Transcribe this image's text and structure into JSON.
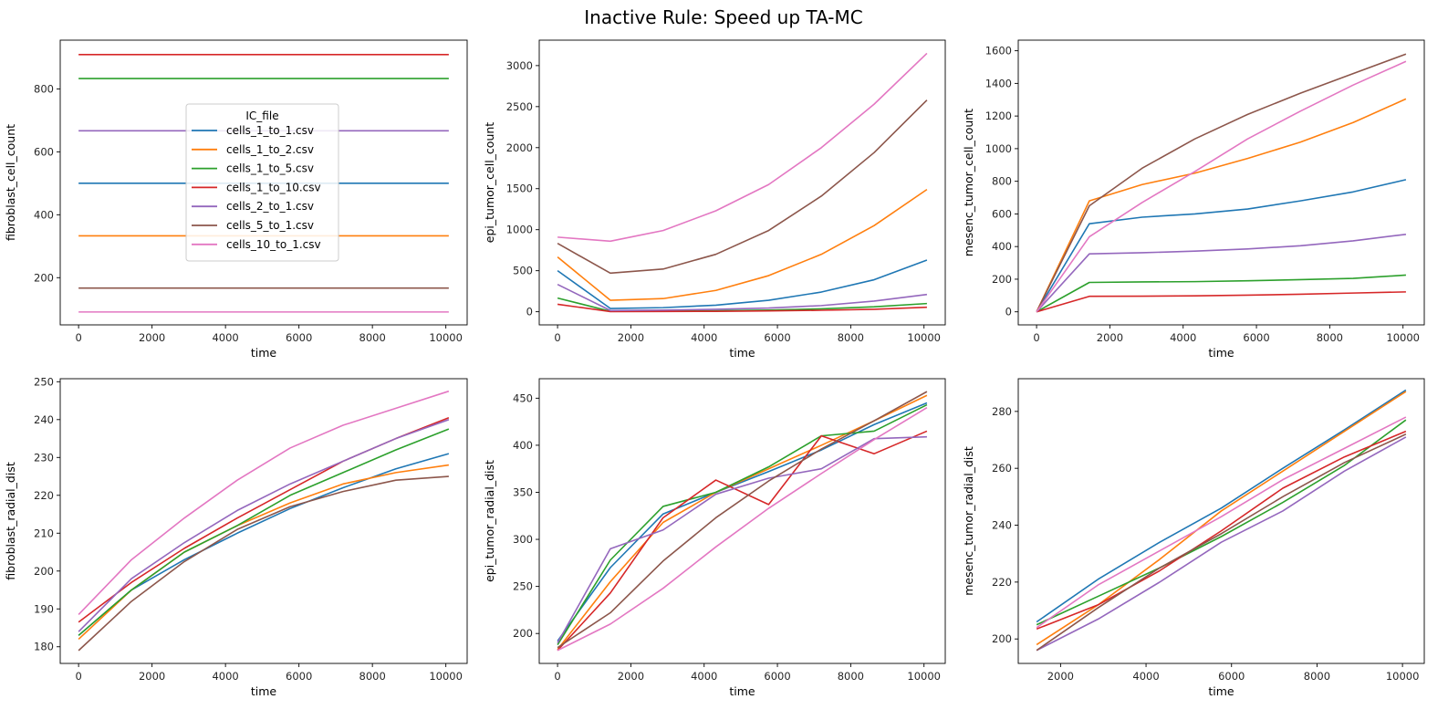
{
  "figure": {
    "title": "Inactive Rule: Speed up TA-MC",
    "legend_title": "IC_file"
  },
  "colors": {
    "cells_1_to_1.csv": "#1f77b4",
    "cells_1_to_2.csv": "#ff7f0e",
    "cells_1_to_5.csv": "#2ca02c",
    "cells_1_to_10.csv": "#d62728",
    "cells_2_to_1.csv": "#9467bd",
    "cells_5_to_1.csv": "#8c564b",
    "cells_10_to_1.csv": "#e377c2"
  },
  "chart_data": [
    {
      "type": "line",
      "xlabel": "time",
      "ylabel": "fibroblast_cell_count",
      "xlim": [
        -500,
        10580
      ],
      "ylim": [
        50,
        955
      ],
      "xticks": [
        0,
        2000,
        4000,
        6000,
        8000,
        10000
      ],
      "yticks": [
        200,
        400,
        600,
        800
      ],
      "legend": "upper-center",
      "series": [
        {
          "name": "cells_1_to_1.csv",
          "x": [
            0,
            10080
          ],
          "y": [
            500,
            500
          ]
        },
        {
          "name": "cells_1_to_2.csv",
          "x": [
            0,
            10080
          ],
          "y": [
            333,
            333
          ]
        },
        {
          "name": "cells_1_to_5.csv",
          "x": [
            0,
            10080
          ],
          "y": [
            833,
            833
          ]
        },
        {
          "name": "cells_1_to_10.csv",
          "x": [
            0,
            10080
          ],
          "y": [
            909,
            909
          ]
        },
        {
          "name": "cells_2_to_1.csv",
          "x": [
            0,
            10080
          ],
          "y": [
            667,
            667
          ]
        },
        {
          "name": "cells_5_to_1.csv",
          "x": [
            0,
            10080
          ],
          "y": [
            167,
            167
          ]
        },
        {
          "name": "cells_10_to_1.csv",
          "x": [
            0,
            10080
          ],
          "y": [
            91,
            91
          ]
        }
      ]
    },
    {
      "type": "line",
      "xlabel": "time",
      "ylabel": "epi_tumor_cell_count",
      "xlim": [
        -500,
        10580
      ],
      "ylim": [
        -160,
        3310
      ],
      "xticks": [
        0,
        2000,
        4000,
        6000,
        8000,
        10000
      ],
      "yticks": [
        0,
        500,
        1000,
        1500,
        2000,
        2500,
        3000
      ],
      "series": [
        {
          "name": "cells_1_to_1.csv",
          "x": [
            0,
            1440,
            2880,
            4320,
            5760,
            7200,
            8640,
            10080
          ],
          "y": [
            500,
            40,
            50,
            80,
            140,
            240,
            390,
            630
          ]
        },
        {
          "name": "cells_1_to_2.csv",
          "x": [
            0,
            1440,
            2880,
            4320,
            5760,
            7200,
            8640,
            10080
          ],
          "y": [
            667,
            140,
            160,
            260,
            440,
            700,
            1050,
            1490
          ]
        },
        {
          "name": "cells_1_to_5.csv",
          "x": [
            0,
            1440,
            2880,
            4320,
            5760,
            7200,
            8640,
            10080
          ],
          "y": [
            167,
            5,
            8,
            12,
            20,
            35,
            60,
            100
          ]
        },
        {
          "name": "cells_1_to_10.csv",
          "x": [
            0,
            1440,
            2880,
            4320,
            5760,
            7200,
            8640,
            10080
          ],
          "y": [
            91,
            2,
            3,
            5,
            10,
            18,
            30,
            55
          ]
        },
        {
          "name": "cells_2_to_1.csv",
          "x": [
            0,
            1440,
            2880,
            4320,
            5760,
            7200,
            8640,
            10080
          ],
          "y": [
            333,
            15,
            20,
            30,
            45,
            75,
            130,
            210
          ]
        },
        {
          "name": "cells_5_to_1.csv",
          "x": [
            0,
            1440,
            2880,
            4320,
            5760,
            7200,
            8640,
            10080
          ],
          "y": [
            833,
            470,
            520,
            700,
            990,
            1410,
            1940,
            2580
          ]
        },
        {
          "name": "cells_10_to_1.csv",
          "x": [
            0,
            1440,
            2880,
            4320,
            5760,
            7200,
            8640,
            10080
          ],
          "y": [
            909,
            860,
            990,
            1230,
            1550,
            2000,
            2530,
            3150
          ]
        }
      ]
    },
    {
      "type": "line",
      "xlabel": "time",
      "ylabel": "mesenc_tumor_cell_count",
      "xlim": [
        -500,
        10580
      ],
      "ylim": [
        -80,
        1665
      ],
      "xticks": [
        0,
        2000,
        4000,
        6000,
        8000,
        10000
      ],
      "yticks": [
        0,
        200,
        400,
        600,
        800,
        1000,
        1200,
        1400,
        1600
      ],
      "series": [
        {
          "name": "cells_1_to_1.csv",
          "x": [
            0,
            1440,
            2880,
            4320,
            5760,
            7200,
            8640,
            10080
          ],
          "y": [
            0,
            540,
            580,
            600,
            630,
            680,
            735,
            810
          ]
        },
        {
          "name": "cells_1_to_2.csv",
          "x": [
            0,
            1440,
            2880,
            4320,
            5760,
            7200,
            8640,
            10080
          ],
          "y": [
            0,
            680,
            780,
            850,
            940,
            1040,
            1160,
            1305
          ]
        },
        {
          "name": "cells_1_to_5.csv",
          "x": [
            0,
            1440,
            2880,
            4320,
            5760,
            7200,
            8640,
            10080
          ],
          "y": [
            0,
            180,
            183,
            185,
            190,
            197,
            205,
            225
          ]
        },
        {
          "name": "cells_1_to_10.csv",
          "x": [
            0,
            1440,
            2880,
            4320,
            5760,
            7200,
            8640,
            10080
          ],
          "y": [
            0,
            95,
            96,
            98,
            102,
            108,
            115,
            122
          ]
        },
        {
          "name": "cells_2_to_1.csv",
          "x": [
            0,
            1440,
            2880,
            4320,
            5760,
            7200,
            8640,
            10080
          ],
          "y": [
            0,
            355,
            362,
            372,
            385,
            405,
            435,
            475
          ]
        },
        {
          "name": "cells_5_to_1.csv",
          "x": [
            0,
            1440,
            2880,
            4320,
            5760,
            7200,
            8640,
            10080
          ],
          "y": [
            0,
            650,
            880,
            1060,
            1210,
            1340,
            1460,
            1580
          ]
        },
        {
          "name": "cells_10_to_1.csv",
          "x": [
            0,
            1440,
            2880,
            4320,
            5760,
            7200,
            8640,
            10080
          ],
          "y": [
            0,
            460,
            670,
            860,
            1060,
            1230,
            1390,
            1535
          ]
        }
      ]
    },
    {
      "type": "line",
      "xlabel": "time",
      "ylabel": "fibroblast_radial_dist",
      "xlim": [
        -500,
        10580
      ],
      "ylim": [
        175.6,
        250.8
      ],
      "xticks": [
        0,
        2000,
        4000,
        6000,
        8000,
        10000
      ],
      "yticks": [
        180,
        190,
        200,
        210,
        220,
        230,
        240,
        250
      ],
      "series": [
        {
          "name": "cells_1_to_1.csv",
          "x": [
            0,
            1440,
            2880,
            4320,
            5760,
            7200,
            8640,
            10080
          ],
          "y": [
            183,
            195,
            203,
            210,
            216.5,
            222,
            227,
            231
          ]
        },
        {
          "name": "cells_1_to_2.csv",
          "x": [
            0,
            1440,
            2880,
            4320,
            5760,
            7200,
            8640,
            10080
          ],
          "y": [
            182,
            195,
            205,
            212,
            218,
            223,
            226,
            228
          ]
        },
        {
          "name": "cells_1_to_5.csv",
          "x": [
            0,
            1440,
            2880,
            4320,
            5760,
            7200,
            8640,
            10080
          ],
          "y": [
            183,
            195,
            205,
            212,
            220,
            226,
            232,
            237.5
          ]
        },
        {
          "name": "cells_1_to_10.csv",
          "x": [
            0,
            1440,
            2880,
            4320,
            5760,
            7200,
            8640,
            10080
          ],
          "y": [
            186.5,
            197,
            206,
            214,
            221.5,
            229,
            235,
            240.5
          ]
        },
        {
          "name": "cells_2_to_1.csv",
          "x": [
            0,
            1440,
            2880,
            4320,
            5760,
            7200,
            8640,
            10080
          ],
          "y": [
            184,
            198,
            207.5,
            216,
            223,
            229,
            235,
            240
          ]
        },
        {
          "name": "cells_5_to_1.csv",
          "x": [
            0,
            1440,
            2880,
            4320,
            5760,
            7200,
            8640,
            10080
          ],
          "y": [
            179,
            192,
            202.5,
            211,
            217,
            221,
            224,
            225
          ]
        },
        {
          "name": "cells_10_to_1.csv",
          "x": [
            0,
            1440,
            2880,
            4320,
            5760,
            7200,
            8640,
            10080
          ],
          "y": [
            188.5,
            203,
            214,
            224,
            232.5,
            238.5,
            243,
            247.5
          ]
        }
      ]
    },
    {
      "type": "line",
      "xlabel": "time",
      "ylabel": "epi_tumor_radial_dist",
      "xlim": [
        -500,
        10580
      ],
      "ylim": [
        168.2,
        470.7
      ],
      "xticks": [
        0,
        2000,
        4000,
        6000,
        8000,
        10000
      ],
      "yticks": [
        200,
        250,
        300,
        350,
        400,
        450
      ],
      "series": [
        {
          "name": "cells_1_to_1.csv",
          "x": [
            0,
            1440,
            2880,
            4320,
            5760,
            7200,
            8640,
            10080
          ],
          "y": [
            192,
            270,
            327,
            350,
            372,
            395,
            422,
            445
          ]
        },
        {
          "name": "cells_1_to_2.csv",
          "x": [
            0,
            1440,
            2880,
            4320,
            5760,
            7200,
            8640,
            10080
          ],
          "y": [
            183,
            255,
            318,
            350,
            375,
            400,
            426,
            453
          ]
        },
        {
          "name": "cells_1_to_5.csv",
          "x": [
            0,
            1440,
            2880,
            4320,
            5760,
            7200,
            8640,
            10080
          ],
          "y": [
            188,
            278,
            335,
            350,
            377,
            410,
            415,
            443
          ]
        },
        {
          "name": "cells_1_to_10.csv",
          "x": [
            0,
            1440,
            2880,
            4320,
            5760,
            7200,
            8640,
            10080
          ],
          "y": [
            182,
            243,
            323,
            363,
            337,
            410,
            391,
            415
          ]
        },
        {
          "name": "cells_2_to_1.csv",
          "x": [
            0,
            1440,
            2880,
            4320,
            5760,
            7200,
            8640,
            10080
          ],
          "y": [
            190,
            290,
            310,
            348,
            365,
            375,
            407,
            409
          ]
        },
        {
          "name": "cells_5_to_1.csv",
          "x": [
            0,
            1440,
            2880,
            4320,
            5760,
            7200,
            8640,
            10080
          ],
          "y": [
            185,
            222,
            277,
            323,
            362,
            396,
            426,
            457
          ]
        },
        {
          "name": "cells_10_to_1.csv",
          "x": [
            0,
            1440,
            2880,
            4320,
            5760,
            7200,
            8640,
            10080
          ],
          "y": [
            182,
            210,
            248,
            292,
            333,
            370,
            406,
            440
          ]
        }
      ]
    },
    {
      "type": "line",
      "xlabel": "time",
      "ylabel": "mesenc_tumor_radial_dist",
      "xlim": [
        1010,
        10510
      ],
      "ylim": [
        191.4,
        291.5
      ],
      "xticks": [
        2000,
        4000,
        6000,
        8000,
        10000
      ],
      "yticks": [
        200,
        220,
        240,
        260,
        280
      ],
      "series": [
        {
          "name": "cells_1_to_1.csv",
          "x": [
            1440,
            2880,
            4320,
            5760,
            7200,
            8640,
            10080
          ],
          "y": [
            206,
            221,
            234,
            246,
            260,
            273.5,
            287.5
          ]
        },
        {
          "name": "cells_1_to_2.csv",
          "x": [
            1440,
            2880,
            4320,
            5760,
            7200,
            8640,
            10080
          ],
          "y": [
            198,
            212,
            228,
            245,
            259,
            273,
            287
          ]
        },
        {
          "name": "cells_1_to_5.csv",
          "x": [
            1440,
            2880,
            4320,
            5760,
            7200,
            8640,
            10080
          ],
          "y": [
            205,
            215,
            225,
            236,
            248,
            261,
            277
          ]
        },
        {
          "name": "cells_1_to_10.csv",
          "x": [
            1440,
            2880,
            4320,
            5760,
            7200,
            8640,
            10080
          ],
          "y": [
            203.5,
            212,
            224,
            238,
            253,
            264,
            273
          ]
        },
        {
          "name": "cells_2_to_1.csv",
          "x": [
            1440,
            2880,
            4320,
            5760,
            7200,
            8640,
            10080
          ],
          "y": [
            196,
            207,
            220,
            234,
            245,
            259,
            271
          ]
        },
        {
          "name": "cells_5_to_1.csv",
          "x": [
            1440,
            2880,
            4320,
            5760,
            7200,
            8640,
            10080
          ],
          "y": [
            196,
            211,
            225,
            237,
            250,
            262,
            272
          ]
        },
        {
          "name": "cells_10_to_1.csv",
          "x": [
            1440,
            2880,
            4320,
            5760,
            7200,
            8640,
            10080
          ],
          "y": [
            204,
            219,
            231,
            243,
            256,
            267,
            278
          ]
        }
      ]
    }
  ]
}
